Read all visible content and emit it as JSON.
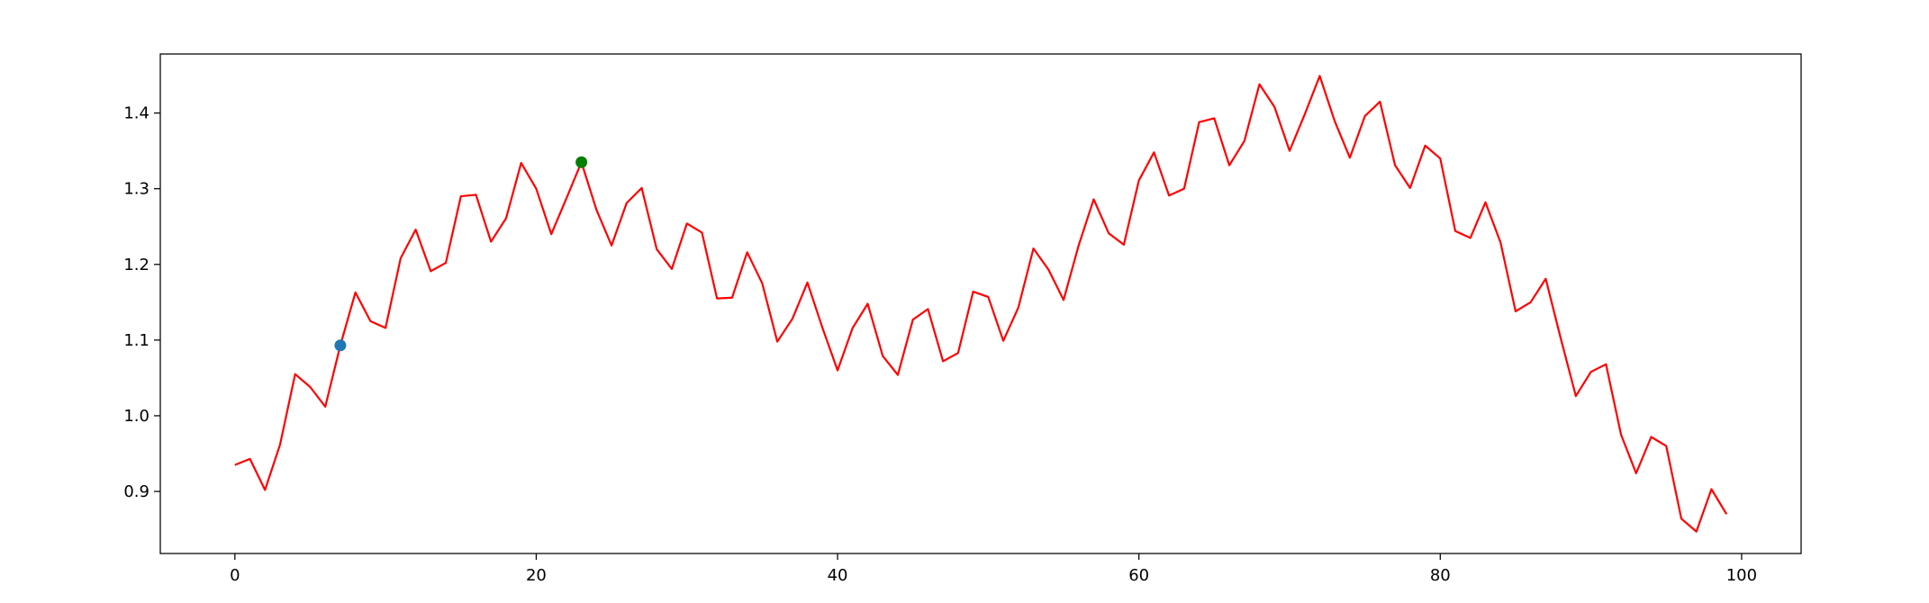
{
  "chart_data": {
    "type": "line",
    "title": "",
    "xlabel": "",
    "ylabel": "",
    "xlim": [
      -4.95,
      103.95
    ],
    "ylim": [
      0.818,
      1.478
    ],
    "x_ticks": [
      0,
      20,
      40,
      60,
      80,
      100
    ],
    "y_ticks": [
      0.9,
      1.0,
      1.1,
      1.2,
      1.3,
      1.4
    ],
    "x_tick_labels": [
      "0",
      "20",
      "40",
      "60",
      "80",
      "100"
    ],
    "y_tick_labels": [
      "0.9",
      "1.0",
      "1.1",
      "1.2",
      "1.3",
      "1.4"
    ],
    "grid": false,
    "series": [
      {
        "color": "#ff0000",
        "x": [
          0,
          1,
          2,
          3,
          4,
          5,
          6,
          7,
          8,
          9,
          10,
          11,
          12,
          13,
          14,
          15,
          16,
          17,
          18,
          19,
          20,
          21,
          22,
          23,
          24,
          25,
          26,
          27,
          28,
          29,
          30,
          31,
          32,
          33,
          34,
          35,
          36,
          37,
          38,
          39,
          40,
          41,
          42,
          43,
          44,
          45,
          46,
          47,
          48,
          49,
          50,
          51,
          52,
          53,
          54,
          55,
          56,
          57,
          58,
          59,
          60,
          61,
          62,
          63,
          64,
          65,
          66,
          67,
          68,
          69,
          70,
          71,
          72,
          73,
          74,
          75,
          76,
          77,
          78,
          79,
          80,
          81,
          82,
          83,
          84,
          85,
          86,
          87,
          88,
          89,
          90,
          91,
          92,
          93,
          94,
          95,
          96,
          97,
          98,
          99
        ],
        "values": [
          0.935,
          0.943,
          0.902,
          0.962,
          1.055,
          1.038,
          1.012,
          1.093,
          1.163,
          1.125,
          1.116,
          1.208,
          1.246,
          1.191,
          1.202,
          1.29,
          1.292,
          1.23,
          1.261,
          1.334,
          1.3,
          1.24,
          1.287,
          1.335,
          1.272,
          1.225,
          1.281,
          1.301,
          1.22,
          1.194,
          1.254,
          1.242,
          1.155,
          1.156,
          1.216,
          1.175,
          1.098,
          1.128,
          1.176,
          1.116,
          1.06,
          1.116,
          1.148,
          1.079,
          1.054,
          1.127,
          1.141,
          1.072,
          1.083,
          1.164,
          1.157,
          1.099,
          1.143,
          1.221,
          1.193,
          1.153,
          1.225,
          1.286,
          1.241,
          1.226,
          1.311,
          1.348,
          1.291,
          1.3,
          1.388,
          1.393,
          1.331,
          1.363,
          1.438,
          1.408,
          1.35,
          1.398,
          1.449,
          1.389,
          1.341,
          1.396,
          1.415,
          1.331,
          1.301,
          1.357,
          1.34,
          1.244,
          1.235,
          1.282,
          1.229,
          1.138,
          1.15,
          1.181,
          1.102,
          1.026,
          1.058,
          1.068,
          0.975,
          0.924,
          0.972,
          0.96,
          0.864,
          0.847,
          0.903,
          0.87
        ]
      }
    ],
    "markers": [
      {
        "x": 7,
        "y": 1.093,
        "color": "#1f77b4"
      },
      {
        "x": 23,
        "y": 1.335,
        "color": "#008000"
      }
    ]
  }
}
